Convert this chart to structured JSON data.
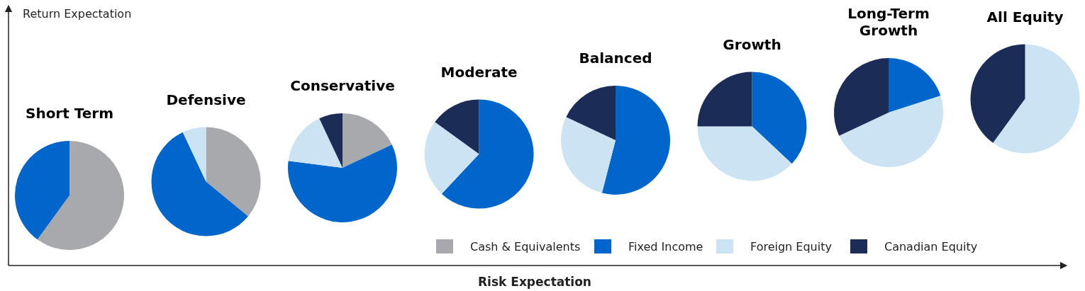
{
  "chart_data": [
    {
      "type": "pie",
      "title": "Short Term",
      "ylabel": "Return Expectation",
      "xlabel": "Risk Expectation",
      "legend": "bottom right",
      "categories": [
        "Cash & Equivalents",
        "Fixed Income",
        "Foreign Equity",
        "Canadian Equity"
      ],
      "values": [
        60,
        40,
        0,
        0
      ],
      "colors": [
        "#a7a9ac",
        "#0066cc",
        "#cce3f3",
        "#1b2d57"
      ]
    },
    {
      "type": "pie",
      "title": "Defensive",
      "categories": [
        null,
        null,
        null
      ],
      "values": [
        36,
        57,
        7
      ],
      "colors": [
        "#a7a9ac",
        "#0066cc",
        "#cce3f3"
      ]
    },
    {
      "type": "pie",
      "title": "Conservative",
      "categories": [
        null,
        null,
        null,
        null
      ],
      "values": [
        18,
        59,
        16,
        7
      ],
      "colors": [
        "#a7a9ac",
        "#0066cc",
        "#cce3f3",
        "#1b2d57"
      ]
    },
    {
      "type": "pie",
      "title": "Moderate",
      "categories": [
        null,
        null,
        null
      ],
      "values": [
        62,
        23,
        15
      ],
      "colors": [
        "#0066cc",
        "#cce3f3",
        "#1b2d57"
      ]
    },
    {
      "type": "pie",
      "title": "Balanced",
      "categories": [
        null,
        null,
        null
      ],
      "values": [
        54,
        28,
        18
      ],
      "colors": [
        "#0066cc",
        "#cce3f3",
        "#1b2d57"
      ]
    },
    {
      "type": "pie",
      "title": "Growth",
      "categories": [
        null,
        null,
        null
      ],
      "values": [
        37,
        38,
        25
      ],
      "colors": [
        "#0066cc",
        "#cce3f3",
        "#1b2d57"
      ]
    },
    {
      "type": "pie",
      "title": "Long-Term Growth",
      "categories": [
        null,
        null,
        null
      ],
      "values": [
        20,
        48,
        32
      ],
      "colors": [
        "#0066cc",
        "#cce3f3",
        "#1b2d57"
      ]
    },
    {
      "type": "pie",
      "title": "All Equity",
      "categories": [
        null,
        null
      ],
      "values": [
        60,
        40
      ],
      "colors": [
        "#cce3f3",
        "#1b2d57"
      ]
    }
  ]
}
